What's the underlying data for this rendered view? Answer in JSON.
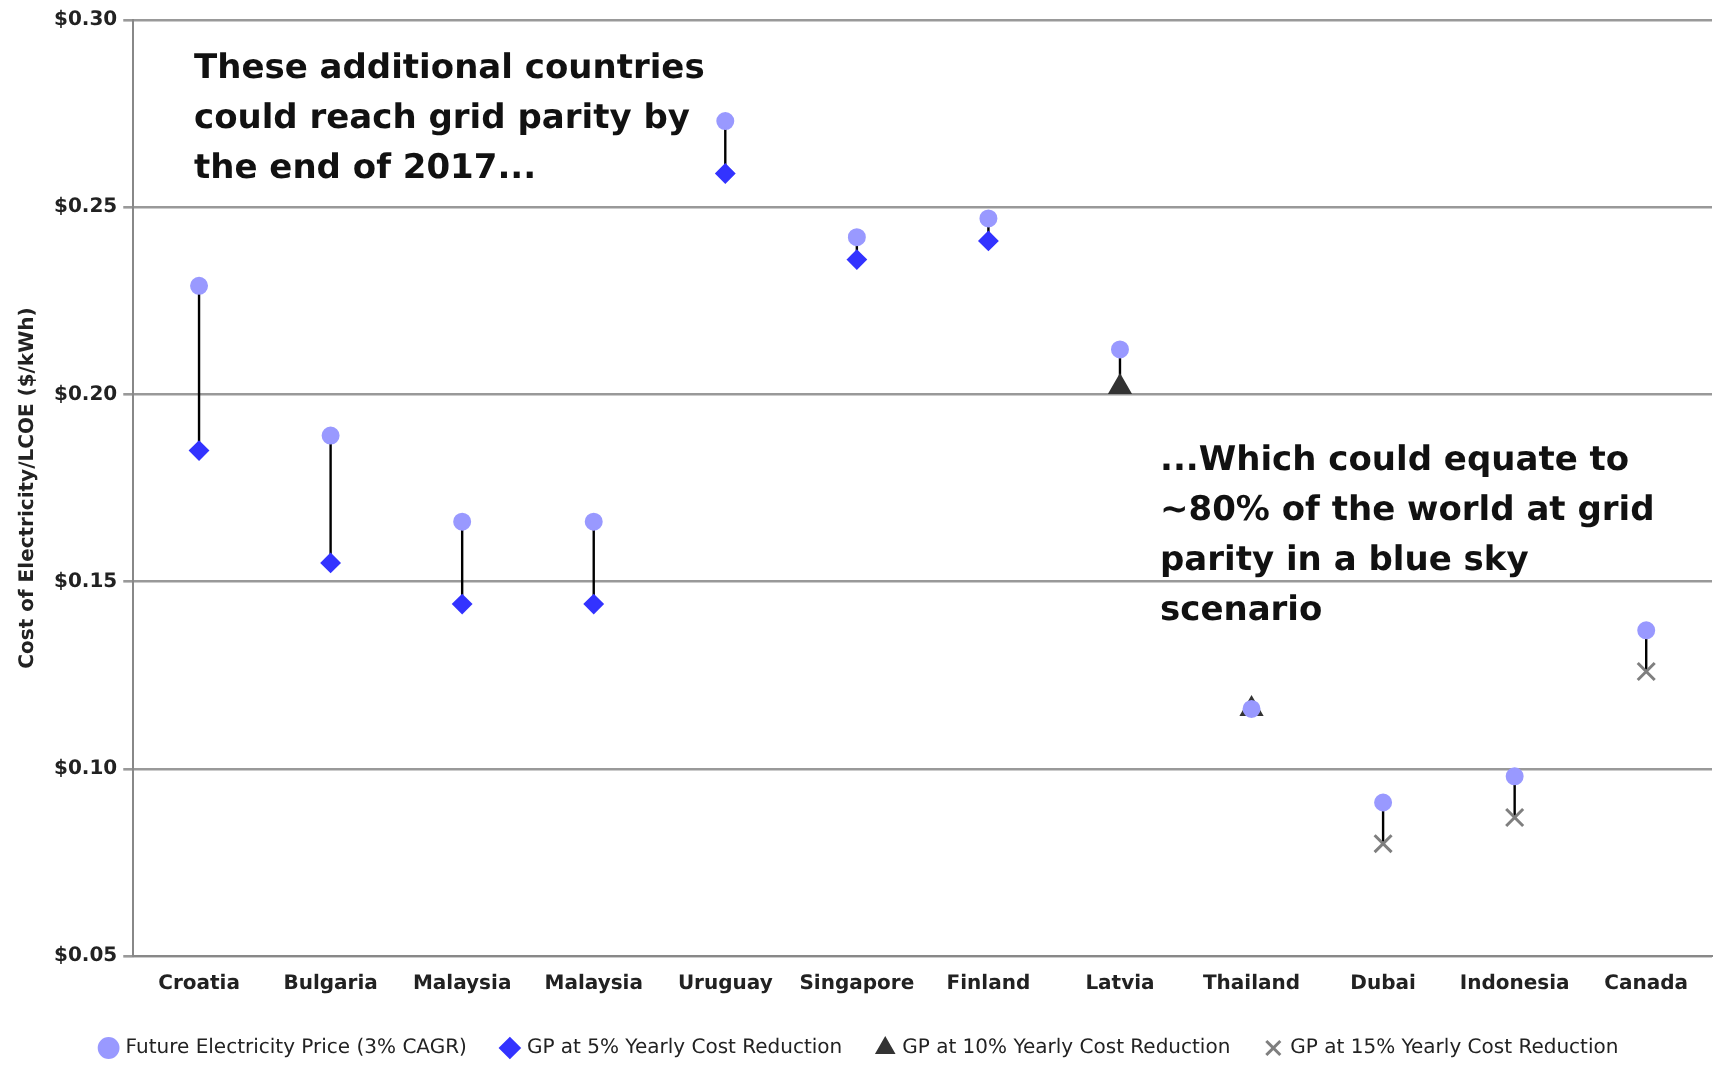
{
  "chart_data": {
    "type": "scatter",
    "ylabel": "Cost of Electricity/LCOE ($/kWh)",
    "categories": [
      "Croatia",
      "Bulgaria",
      "Malaysia",
      "Malaysia",
      "Uruguay",
      "Singapore",
      "Finland",
      "Latvia",
      "Thailand",
      "Dubai",
      "Indonesia",
      "Canada"
    ],
    "series": [
      {
        "name": "Future Electricity Price (3% CAGR)",
        "color": "#9999ff",
        "marker": "circle",
        "values": [
          0.229,
          0.189,
          0.166,
          0.166,
          0.273,
          0.242,
          0.247,
          0.212,
          0.116,
          0.091,
          0.098,
          0.137
        ]
      },
      {
        "name": "GP at 5% Yearly Cost Reduction",
        "color": "#3333ff",
        "marker": "diamond",
        "values": [
          0.185,
          0.155,
          0.144,
          0.144,
          0.259,
          0.236,
          0.241,
          null,
          null,
          null,
          null,
          null
        ]
      },
      {
        "name": "GP at 10% Yearly Cost Reduction",
        "color": "#333333",
        "marker": "triangle",
        "values": [
          null,
          null,
          null,
          null,
          null,
          null,
          null,
          0.202,
          0.116,
          null,
          null,
          null
        ]
      },
      {
        "name": "GP at 15% Yearly Cost Reduction",
        "color": "#7f7f7f",
        "marker": "cross",
        "values": [
          null,
          null,
          null,
          null,
          null,
          null,
          null,
          null,
          null,
          0.08,
          0.087,
          0.126
        ]
      }
    ],
    "ylim": [
      0.05,
      0.3
    ],
    "yticks": [
      {
        "value": 0.05,
        "label": "$0.05"
      },
      {
        "value": 0.1,
        "label": "$0.10"
      },
      {
        "value": 0.15,
        "label": "$0.15"
      },
      {
        "value": 0.2,
        "label": "$0.20"
      },
      {
        "value": 0.25,
        "label": "$0.25"
      },
      {
        "value": 0.3,
        "label": "$0.30"
      }
    ],
    "grid": "y",
    "legend": "bottom",
    "annotations": [
      "These additional countries could reach grid parity by the end of 2017...",
      "...Which could equate to ~80% of the world at grid parity in a blue sky scenario"
    ]
  }
}
